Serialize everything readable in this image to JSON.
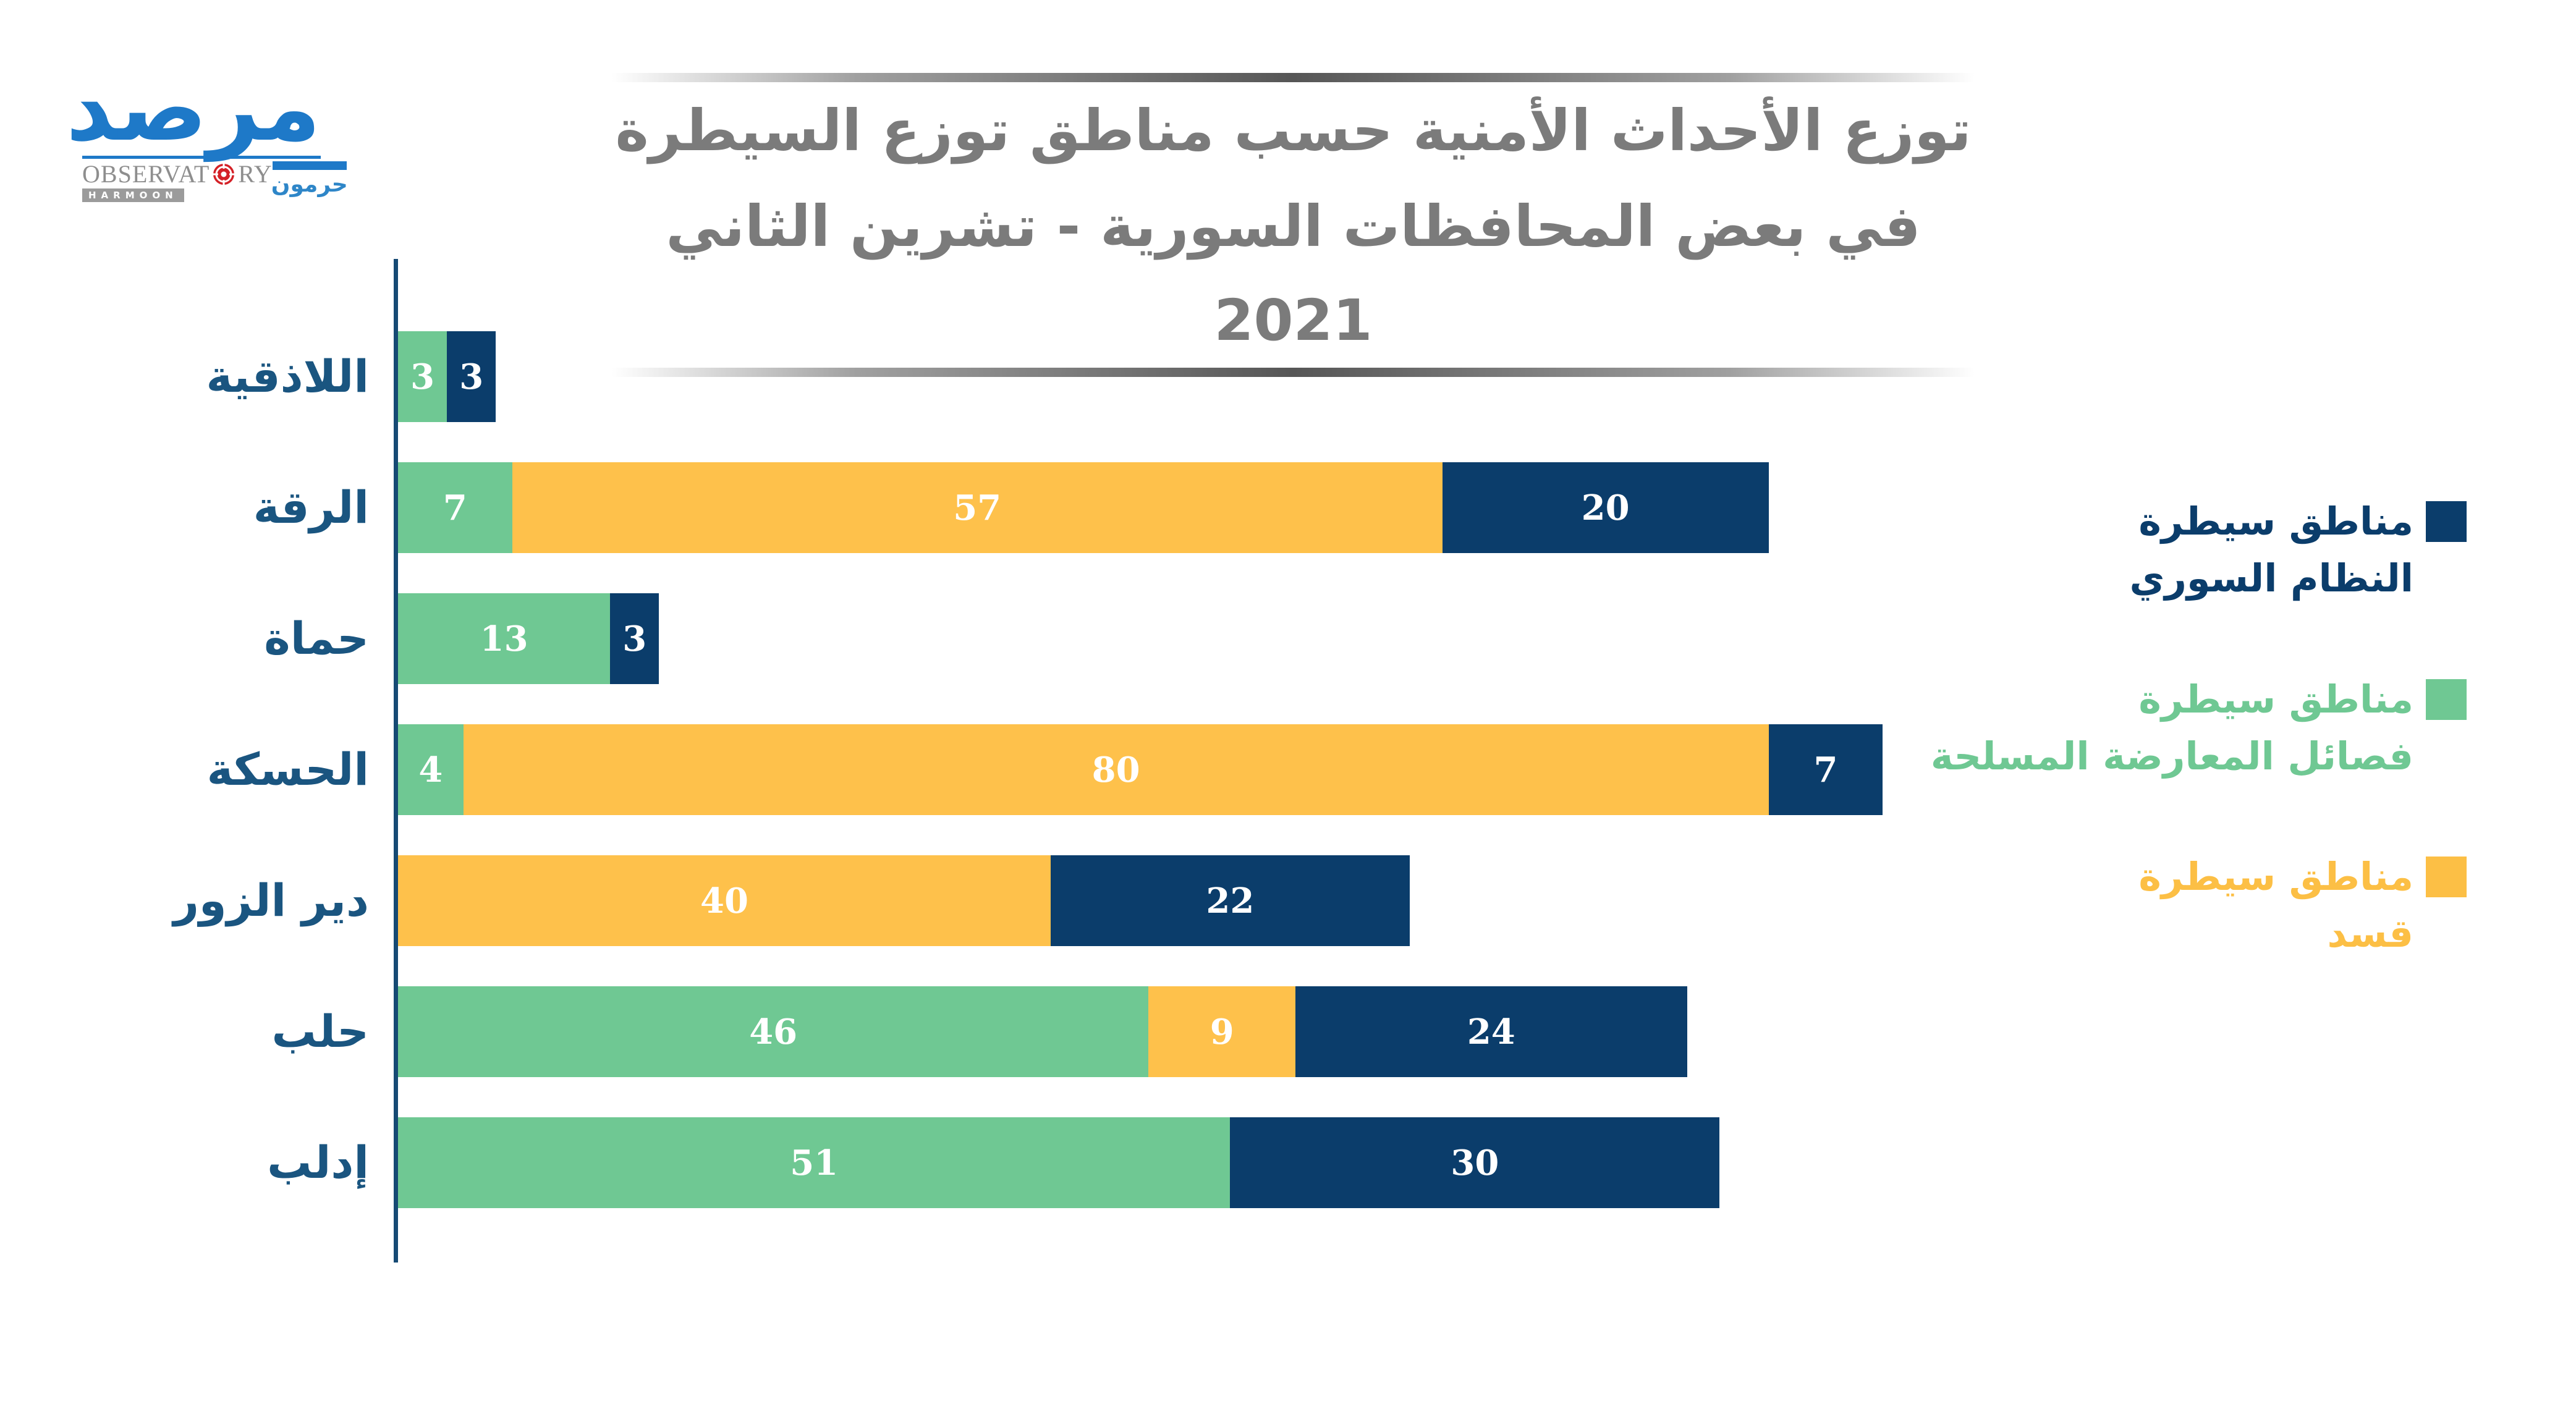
{
  "logo": {
    "wordmark_ar": "مرصد",
    "observatory_left": "OBSERVAT",
    "observatory_right": "RY",
    "harmoon_en": "HARMOON",
    "harmoon_ar": "حرمون",
    "blue": "#1e79c8",
    "gray": "#8e8e8e",
    "red": "#d42127"
  },
  "title": {
    "line1": "توزع الأحداث الأمنية حسب مناطق توزع السيطرة",
    "line2": "في بعض المحافظات السورية - تشرين الثاني 2021",
    "color": "#7b7b7b"
  },
  "legend": {
    "items": [
      {
        "line1": "مناطق سيطرة",
        "line2": "النظام السوري",
        "color": "#0b3d6b"
      },
      {
        "line1": "مناطق سيطرة",
        "line2": "فصائل المعارضة المسلحة",
        "color": "#6fc893"
      },
      {
        "line1": "مناطق سيطرة",
        "line2": "قسد",
        "color": "#fcbf45"
      }
    ]
  },
  "chart_data": {
    "type": "bar",
    "orientation": "horizontal",
    "stacked": true,
    "title": "توزع الأحداث الأمنية حسب مناطق توزع السيطرة في بعض المحافظات السورية - تشرين الثاني 2021",
    "categories": [
      "اللاذقية",
      "الرقة",
      "حماة",
      "الحسكة",
      "دير الزور",
      "حلب",
      "إدلب"
    ],
    "series": [
      {
        "name": "مناطق سيطرة فصائل المعارضة المسلحة",
        "color": "#6fc893",
        "values": [
          3,
          7,
          13,
          4,
          0,
          46,
          51
        ]
      },
      {
        "name": "مناطق سيطرة قسد",
        "color": "#fec14b",
        "values": [
          0,
          57,
          0,
          80,
          40,
          9,
          0
        ]
      },
      {
        "name": "مناطق سيطرة النظام السوري",
        "color": "#0b3d6b",
        "values": [
          3,
          20,
          3,
          7,
          22,
          24,
          30
        ]
      }
    ],
    "totals": [
      6,
      84,
      16,
      91,
      62,
      79,
      81
    ],
    "value_label_color": "#ffffff",
    "axis_color": "#164a74",
    "category_label_color": "#1a5580",
    "grid": false,
    "legend_position": "right"
  }
}
